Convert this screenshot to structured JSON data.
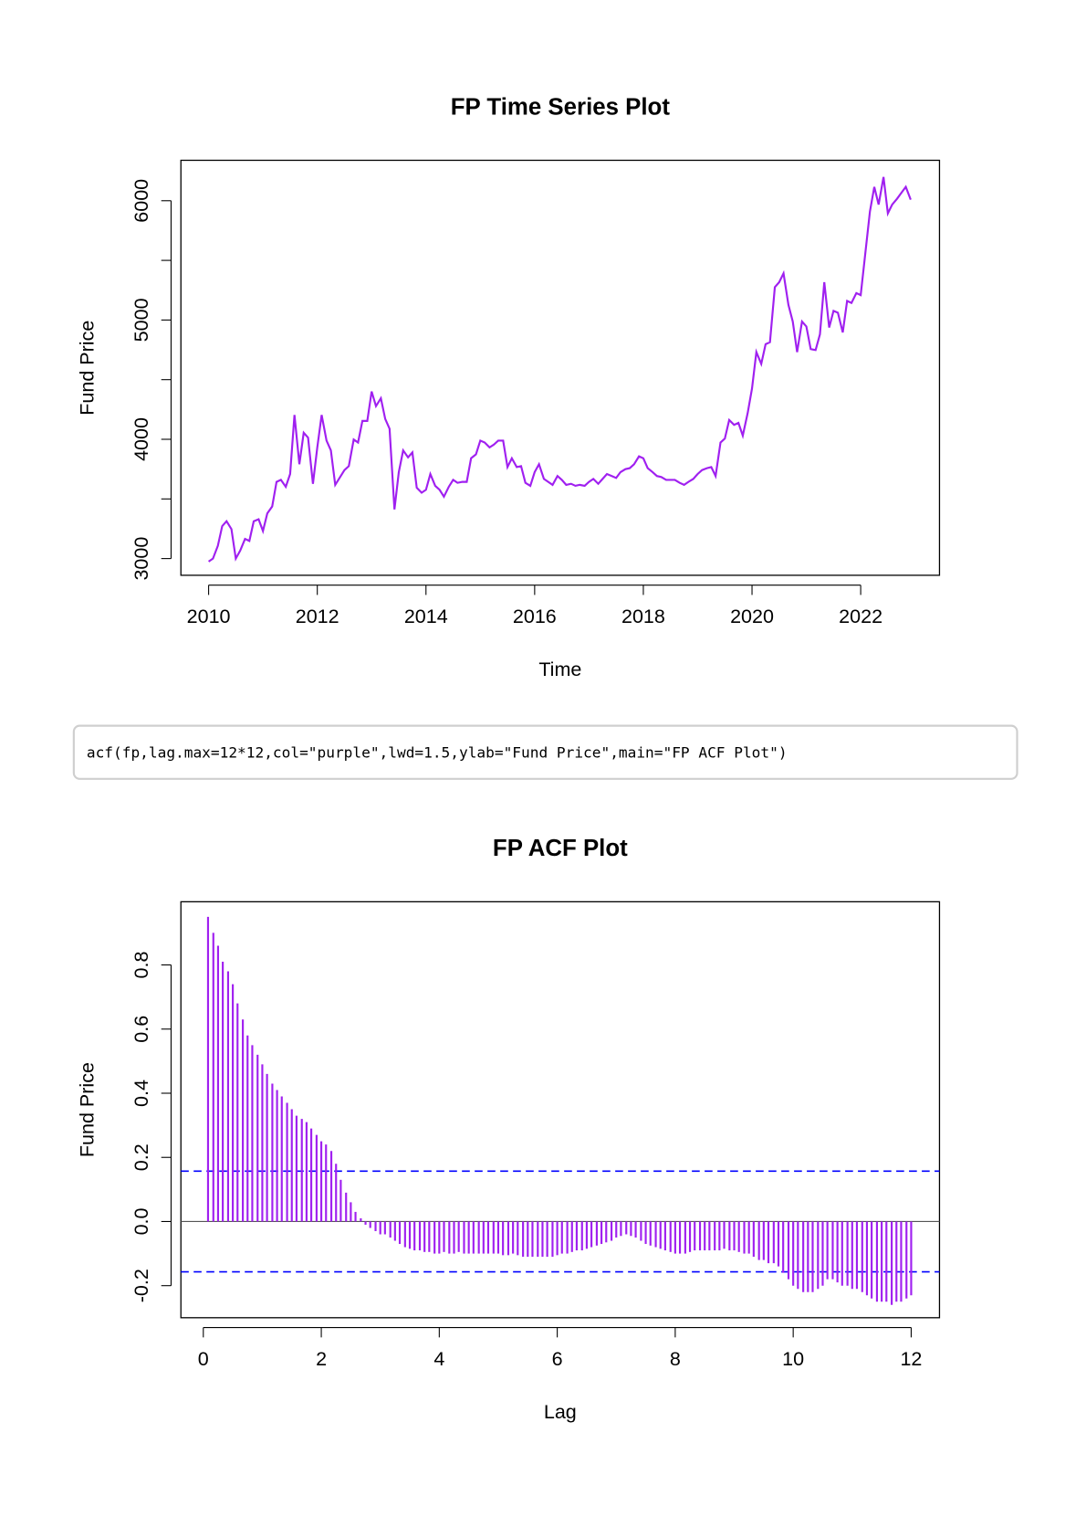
{
  "chart_data": [
    {
      "type": "line",
      "title": "FP Time Series Plot",
      "x_label": "Time",
      "y_label": "Fund Price",
      "color": "#a020f0",
      "x": [
        2010.0,
        2010.08,
        2010.17,
        2010.25,
        2010.33,
        2010.42,
        2010.5,
        2010.58,
        2010.67,
        2010.75,
        2010.83,
        2010.92,
        2011.0,
        2011.08,
        2011.17,
        2011.25,
        2011.33,
        2011.42,
        2011.5,
        2011.58,
        2011.67,
        2011.75,
        2011.83,
        2011.92,
        2012.0,
        2012.08,
        2012.17,
        2012.25,
        2012.33,
        2012.42,
        2012.5,
        2012.58,
        2012.67,
        2012.75,
        2012.83,
        2012.92,
        2013.0,
        2013.08,
        2013.17,
        2013.25,
        2013.33,
        2013.42,
        2013.5,
        2013.58,
        2013.67,
        2013.75,
        2013.83,
        2013.92,
        2014.0,
        2014.08,
        2014.17,
        2014.25,
        2014.33,
        2014.42,
        2014.5,
        2014.58,
        2014.67,
        2014.75,
        2014.83,
        2014.92,
        2015.0,
        2015.08,
        2015.17,
        2015.25,
        2015.33,
        2015.42,
        2015.5,
        2015.58,
        2015.67,
        2015.75,
        2015.83,
        2015.92,
        2016.0,
        2016.08,
        2016.17,
        2016.25,
        2016.33,
        2016.42,
        2016.5,
        2016.58,
        2016.67,
        2016.75,
        2016.83,
        2016.92,
        2017.0,
        2017.08,
        2017.17,
        2017.25,
        2017.33,
        2017.42,
        2017.5,
        2017.58,
        2017.67,
        2017.75,
        2017.83,
        2017.92,
        2018.0,
        2018.08,
        2018.17,
        2018.25,
        2018.33,
        2018.42,
        2018.5,
        2018.58,
        2018.67,
        2018.75,
        2018.83,
        2018.92,
        2019.0,
        2019.08,
        2019.17,
        2019.25,
        2019.33,
        2019.42,
        2019.5,
        2019.58,
        2019.67,
        2019.75,
        2019.83,
        2019.92,
        2020.0,
        2020.08,
        2020.17,
        2020.25,
        2020.33,
        2020.42,
        2020.5,
        2020.58,
        2020.67,
        2020.75,
        2020.83,
        2020.92,
        2021.0,
        2021.08,
        2021.17,
        2021.25,
        2021.33,
        2021.42,
        2021.5,
        2021.58,
        2021.67,
        2021.75,
        2021.83,
        2021.92,
        2022.0,
        2022.08,
        2022.17,
        2022.25,
        2022.33,
        2022.42,
        2022.5,
        2022.58,
        2022.67,
        2022.75,
        2022.83,
        2022.92
      ],
      "values": [
        2975,
        3000,
        3107,
        3272,
        3313,
        3247,
        3000,
        3066,
        3165,
        3148,
        3313,
        3330,
        3231,
        3379,
        3437,
        3643,
        3660,
        3602,
        3709,
        4204,
        3791,
        4055,
        4014,
        3627,
        3932,
        4204,
        3989,
        3907,
        3618,
        3684,
        3742,
        3775,
        3998,
        3973,
        4154,
        4154,
        4401,
        4278,
        4344,
        4171,
        4088,
        3412,
        3725,
        3907,
        3849,
        3890,
        3594,
        3552,
        3577,
        3709,
        3610,
        3577,
        3519,
        3602,
        3660,
        3635,
        3643,
        3643,
        3841,
        3874,
        3989,
        3973,
        3932,
        3956,
        3989,
        3989,
        3767,
        3841,
        3767,
        3775,
        3635,
        3610,
        3725,
        3791,
        3668,
        3643,
        3618,
        3692,
        3660,
        3618,
        3627,
        3610,
        3618,
        3610,
        3643,
        3668,
        3627,
        3668,
        3709,
        3692,
        3676,
        3725,
        3750,
        3758,
        3791,
        3857,
        3841,
        3758,
        3725,
        3692,
        3684,
        3660,
        3660,
        3660,
        3635,
        3618,
        3643,
        3668,
        3709,
        3742,
        3758,
        3767,
        3692,
        3973,
        4006,
        4162,
        4121,
        4138,
        4031,
        4220,
        4426,
        4731,
        4632,
        4797,
        4814,
        5275,
        5317,
        5391,
        5127,
        4987,
        4731,
        4987,
        4946,
        4756,
        4748,
        4880,
        5317,
        4937,
        5077,
        5061,
        4896,
        5160,
        5143,
        5226,
        5209,
        5539,
        5910,
        6116,
        5968,
        6199,
        5894,
        5968,
        6017,
        6067,
        6116,
        6009
      ],
      "xlim": [
        2009.49,
        2023.45
      ],
      "ylim": [
        2860,
        6339
      ],
      "xticks": [
        2010,
        2012,
        2014,
        2016,
        2018,
        2020,
        2022
      ],
      "yticks": [
        3000,
        4000,
        5000,
        6000
      ],
      "yminorticks": [
        3500,
        4500,
        5500
      ]
    },
    {
      "type": "acf",
      "title": "FP ACF Plot",
      "x_label": "Lag",
      "y_label": "Fund Price",
      "color": "#a020f0",
      "conf_color": "#0000ff",
      "x": [
        0.08,
        0.17,
        0.25,
        0.33,
        0.42,
        0.5,
        0.58,
        0.67,
        0.75,
        0.83,
        0.92,
        1,
        1.08,
        1.17,
        1.25,
        1.33,
        1.42,
        1.5,
        1.58,
        1.67,
        1.75,
        1.83,
        1.92,
        2,
        2.08,
        2.17,
        2.25,
        2.33,
        2.42,
        2.5,
        2.58,
        2.67,
        2.75,
        2.83,
        2.92,
        3,
        3.08,
        3.17,
        3.25,
        3.33,
        3.42,
        3.5,
        3.58,
        3.67,
        3.75,
        3.83,
        3.92,
        4,
        4.08,
        4.17,
        4.25,
        4.33,
        4.42,
        4.5,
        4.58,
        4.67,
        4.75,
        4.83,
        4.92,
        5,
        5.08,
        5.17,
        5.25,
        5.33,
        5.42,
        5.5,
        5.58,
        5.67,
        5.75,
        5.83,
        5.92,
        6,
        6.08,
        6.17,
        6.25,
        6.33,
        6.42,
        6.5,
        6.58,
        6.67,
        6.75,
        6.83,
        6.92,
        7,
        7.08,
        7.17,
        7.25,
        7.33,
        7.42,
        7.5,
        7.58,
        7.67,
        7.75,
        7.83,
        7.92,
        8,
        8.08,
        8.17,
        8.25,
        8.33,
        8.42,
        8.5,
        8.58,
        8.67,
        8.75,
        8.83,
        8.92,
        9,
        9.08,
        9.17,
        9.25,
        9.33,
        9.42,
        9.5,
        9.58,
        9.67,
        9.75,
        9.83,
        9.92,
        10,
        10.08,
        10.17,
        10.25,
        10.33,
        10.42,
        10.5,
        10.58,
        10.67,
        10.75,
        10.83,
        10.92,
        11,
        11.08,
        11.17,
        11.25,
        11.33,
        11.42,
        11.5,
        11.58,
        11.67,
        11.75,
        11.83,
        11.92,
        12
      ],
      "values": [
        0.95,
        0.9,
        0.86,
        0.81,
        0.78,
        0.74,
        0.68,
        0.63,
        0.58,
        0.55,
        0.52,
        0.49,
        0.46,
        0.43,
        0.41,
        0.39,
        0.37,
        0.35,
        0.33,
        0.32,
        0.31,
        0.29,
        0.27,
        0.25,
        0.24,
        0.22,
        0.18,
        0.13,
        0.09,
        0.06,
        0.03,
        0.01,
        -0.01,
        -0.02,
        -0.03,
        -0.04,
        -0.04,
        -0.05,
        -0.06,
        -0.07,
        -0.08,
        -0.085,
        -0.09,
        -0.09,
        -0.095,
        -0.095,
        -0.1,
        -0.1,
        -0.095,
        -0.1,
        -0.1,
        -0.095,
        -0.1,
        -0.1,
        -0.1,
        -0.1,
        -0.1,
        -0.1,
        -0.1,
        -0.1,
        -0.105,
        -0.105,
        -0.1,
        -0.105,
        -0.11,
        -0.11,
        -0.11,
        -0.11,
        -0.11,
        -0.11,
        -0.11,
        -0.105,
        -0.1,
        -0.1,
        -0.095,
        -0.09,
        -0.09,
        -0.085,
        -0.08,
        -0.075,
        -0.07,
        -0.065,
        -0.06,
        -0.05,
        -0.045,
        -0.04,
        -0.045,
        -0.05,
        -0.06,
        -0.07,
        -0.075,
        -0.08,
        -0.085,
        -0.09,
        -0.095,
        -0.1,
        -0.1,
        -0.1,
        -0.095,
        -0.09,
        -0.09,
        -0.09,
        -0.09,
        -0.09,
        -0.09,
        -0.085,
        -0.09,
        -0.09,
        -0.095,
        -0.1,
        -0.1,
        -0.11,
        -0.12,
        -0.12,
        -0.13,
        -0.13,
        -0.14,
        -0.16,
        -0.18,
        -0.2,
        -0.21,
        -0.22,
        -0.22,
        -0.22,
        -0.21,
        -0.2,
        -0.18,
        -0.18,
        -0.19,
        -0.2,
        -0.2,
        -0.21,
        -0.21,
        -0.22,
        -0.23,
        -0.24,
        -0.25,
        -0.25,
        -0.25,
        -0.26,
        -0.25,
        -0.25,
        -0.24,
        -0.23
      ],
      "conf_lines": [
        0.157,
        -0.157
      ],
      "xlim": [
        -0.38,
        12.48
      ],
      "ylim": [
        -0.3,
        0.997
      ],
      "xticks": [
        0,
        2,
        4,
        6,
        8,
        10,
        12
      ],
      "yticks": [
        -0.2,
        {
          "value": 0,
          "label": "0.0"
        },
        0.2,
        0.4,
        0.6,
        0.8
      ]
    }
  ],
  "code": "acf(fp,lag.max=12*12,col=\"purple\",lwd=1.5,ylab=\"Fund Price\",main=\"FP ACF Plot\")"
}
